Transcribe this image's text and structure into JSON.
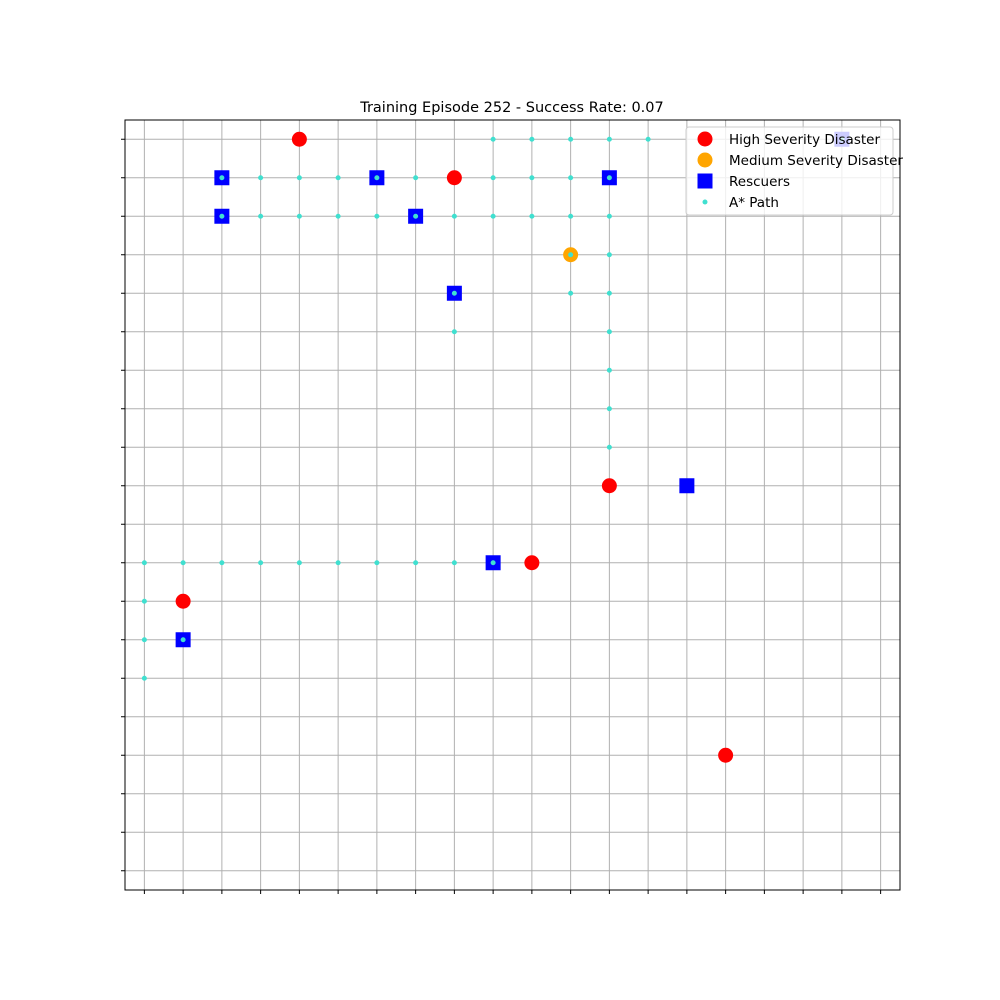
{
  "chart_data": {
    "type": "scatter",
    "title": "Training Episode 252 - Success Rate: 0.07",
    "xlabel": "",
    "ylabel": "",
    "xlim": [
      -0.5,
      19.5
    ],
    "ylim": [
      19.5,
      -0.5
    ],
    "grid": true,
    "tick_labels_shown": false,
    "legend_position": "top-right",
    "series": [
      {
        "name": "High Severity Disaster",
        "marker": "circle",
        "color": "#ff0000",
        "points": [
          [
            4,
            0
          ],
          [
            8,
            1
          ],
          [
            12,
            9
          ],
          [
            10,
            11
          ],
          [
            1,
            12
          ],
          [
            15,
            16
          ]
        ]
      },
      {
        "name": "Medium Severity Disaster",
        "marker": "circle",
        "color": "#ffa500",
        "points": [
          [
            11,
            3
          ]
        ]
      },
      {
        "name": "Rescuers",
        "marker": "square",
        "color": "#0000ff",
        "points": [
          [
            18,
            0
          ],
          [
            2,
            1
          ],
          [
            6,
            1
          ],
          [
            12,
            1
          ],
          [
            2,
            2
          ],
          [
            7,
            2
          ],
          [
            8,
            4
          ],
          [
            14,
            9
          ],
          [
            9,
            11
          ],
          [
            1,
            13
          ]
        ]
      },
      {
        "name": "A* Path",
        "marker": "dot",
        "color": "#40e0d0",
        "points": [
          [
            9,
            0
          ],
          [
            10,
            0
          ],
          [
            11,
            0
          ],
          [
            12,
            0
          ],
          [
            13,
            0
          ],
          [
            18,
            0
          ],
          [
            2,
            1
          ],
          [
            3,
            1
          ],
          [
            4,
            1
          ],
          [
            5,
            1
          ],
          [
            6,
            1
          ],
          [
            7,
            1
          ],
          [
            9,
            1
          ],
          [
            10,
            1
          ],
          [
            11,
            1
          ],
          [
            12,
            1
          ],
          [
            2,
            2
          ],
          [
            3,
            2
          ],
          [
            4,
            2
          ],
          [
            5,
            2
          ],
          [
            6,
            2
          ],
          [
            7,
            2
          ],
          [
            8,
            2
          ],
          [
            9,
            2
          ],
          [
            10,
            2
          ],
          [
            11,
            2
          ],
          [
            12,
            2
          ],
          [
            11,
            3
          ],
          [
            12,
            3
          ],
          [
            8,
            4
          ],
          [
            11,
            4
          ],
          [
            12,
            4
          ],
          [
            8,
            5
          ],
          [
            12,
            5
          ],
          [
            12,
            6
          ],
          [
            12,
            7
          ],
          [
            12,
            8
          ],
          [
            0,
            11
          ],
          [
            1,
            11
          ],
          [
            2,
            11
          ],
          [
            3,
            11
          ],
          [
            4,
            11
          ],
          [
            5,
            11
          ],
          [
            6,
            11
          ],
          [
            7,
            11
          ],
          [
            8,
            11
          ],
          [
            9,
            11
          ],
          [
            0,
            12
          ],
          [
            0,
            13
          ],
          [
            1,
            13
          ],
          [
            0,
            14
          ]
        ]
      }
    ]
  },
  "legend": {
    "items": [
      {
        "label": "High Severity Disaster",
        "marker": "circle",
        "color": "#ff0000"
      },
      {
        "label": "Medium Severity Disaster",
        "marker": "circle",
        "color": "#ffa500"
      },
      {
        "label": "Rescuers",
        "marker": "square",
        "color": "#0000ff"
      },
      {
        "label": "A* Path",
        "marker": "dot",
        "color": "#40e0d0"
      }
    ]
  }
}
